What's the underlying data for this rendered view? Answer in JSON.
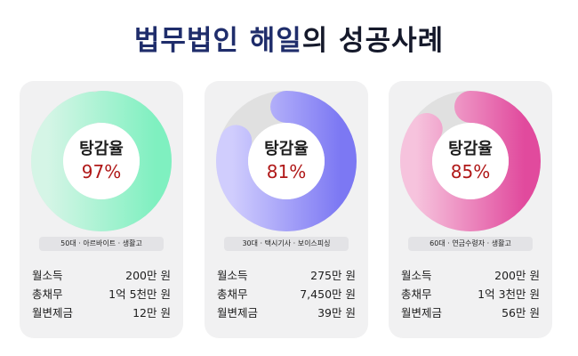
{
  "title": {
    "main": "법무법인 해일",
    "suffix": "의 성공사례"
  },
  "cards": [
    {
      "label": "탕감율",
      "value": "97%",
      "percent": 97,
      "colors": {
        "track": "#e0e0e0",
        "from": "#d5f5e6",
        "to": "#7ff0c0"
      },
      "tag": "50대 · 아르바이트 · 생활고",
      "stats": [
        {
          "label": "월소득",
          "value": "200만 원"
        },
        {
          "label": "총채무",
          "value": "1억 5천만 원"
        },
        {
          "label": "월변제금",
          "value": "12만 원"
        }
      ]
    },
    {
      "label": "탕감율",
      "value": "81%",
      "percent": 81,
      "colors": {
        "track": "#e0e0e0",
        "from": "#d0cdfd",
        "to": "#7c78f3"
      },
      "tag": "30대 · 택시기사 · 보이스피싱",
      "stats": [
        {
          "label": "월소득",
          "value": "275만 원"
        },
        {
          "label": "총채무",
          "value": "7,450만 원"
        },
        {
          "label": "월변제금",
          "value": "39만 원"
        }
      ]
    },
    {
      "label": "탕감율",
      "value": "85%",
      "percent": 85,
      "colors": {
        "track": "#e0e0e0",
        "from": "#f6c3dd",
        "to": "#e14a9d"
      },
      "tag": "60대 · 연금수령자 · 생활고",
      "stats": [
        {
          "label": "월소득",
          "value": "200만 원"
        },
        {
          "label": "총채무",
          "value": "1억 3천만 원"
        },
        {
          "label": "월변제금",
          "value": "56만 원"
        }
      ]
    }
  ]
}
